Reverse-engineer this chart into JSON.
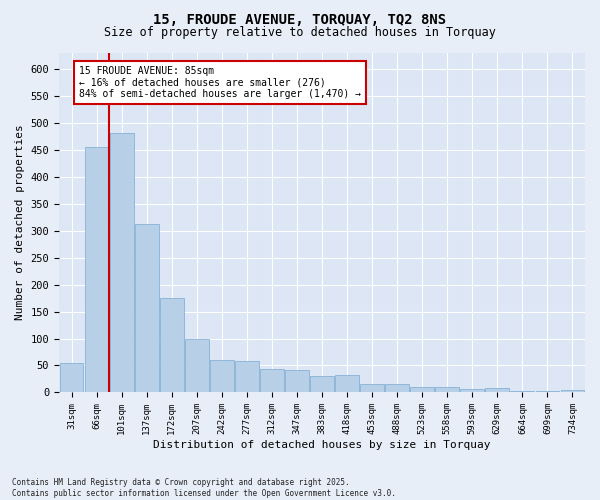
{
  "title_line1": "15, FROUDE AVENUE, TORQUAY, TQ2 8NS",
  "title_line2": "Size of property relative to detached houses in Torquay",
  "xlabel": "Distribution of detached houses by size in Torquay",
  "ylabel": "Number of detached properties",
  "categories": [
    "31sqm",
    "66sqm",
    "101sqm",
    "137sqm",
    "172sqm",
    "207sqm",
    "242sqm",
    "277sqm",
    "312sqm",
    "347sqm",
    "383sqm",
    "418sqm",
    "453sqm",
    "488sqm",
    "523sqm",
    "558sqm",
    "593sqm",
    "629sqm",
    "664sqm",
    "699sqm",
    "734sqm"
  ],
  "values": [
    55,
    455,
    480,
    312,
    175,
    100,
    60,
    58,
    43,
    42,
    30,
    32,
    15,
    15,
    10,
    10,
    7,
    8,
    3,
    2,
    4
  ],
  "bar_color": "#b8cfe8",
  "bar_edge_color": "#7aaad0",
  "annotation_text": "15 FROUDE AVENUE: 85sqm\n← 16% of detached houses are smaller (276)\n84% of semi-detached houses are larger (1,470) →",
  "annotation_box_color": "#ffffff",
  "annotation_box_edge": "#cc0000",
  "vline_color": "#cc0000",
  "vline_x_index": 1.5,
  "ylim": [
    0,
    630
  ],
  "yticks": [
    0,
    50,
    100,
    150,
    200,
    250,
    300,
    350,
    400,
    450,
    500,
    550,
    600
  ],
  "background_color": "#dce6f5",
  "grid_color": "#ffffff",
  "fig_background": "#e8eef8",
  "footer": "Contains HM Land Registry data © Crown copyright and database right 2025.\nContains public sector information licensed under the Open Government Licence v3.0."
}
